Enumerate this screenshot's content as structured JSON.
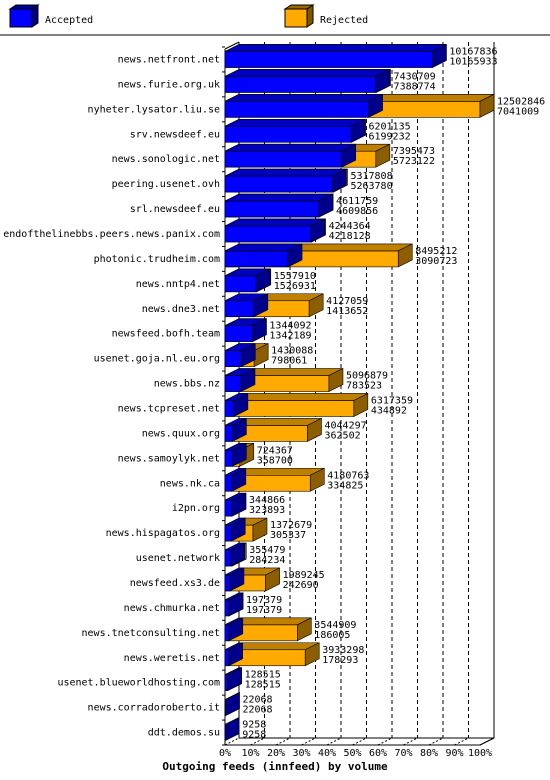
{
  "chart_data": {
    "type": "bar3d",
    "title": "Outgoing feeds (innfeed) by volume",
    "categories": [
      "news.netfront.net",
      "news.furie.org.uk",
      "nyheter.lysator.liu.se",
      "srv.newsdeef.eu",
      "news.sonologic.net",
      "peering.usenet.ovh",
      "srl.newsdeef.eu",
      "endofthelinebbs.peers.news.panix.com",
      "photonic.trudheim.com",
      "news.nntp4.net",
      "news.dne3.net",
      "newsfeed.bofh.team",
      "usenet.goja.nl.eu.org",
      "news.bbs.nz",
      "news.tcpreset.net",
      "news.quux.org",
      "news.samoylyk.net",
      "news.nk.ca",
      "i2pn.org",
      "news.hispagatos.org",
      "usenet.network",
      "newsfeed.xs3.de",
      "news.chmurka.net",
      "news.tnetconsulting.net",
      "news.weretis.net",
      "usenet.blueworldhosting.com",
      "news.corradoroberto.it",
      "ddt.demos.su"
    ],
    "series": [
      {
        "name": "Accepted",
        "color": "#0000ff",
        "values": [
          10165933,
          7388774,
          7041009,
          6199232,
          5723122,
          5263780,
          4609856,
          4218128,
          3090723,
          1526931,
          1413652,
          1342189,
          798061,
          783523,
          434892,
          362502,
          358700,
          334825,
          323893,
          305337,
          284234,
          242690,
          197379,
          186005,
          178293,
          128515,
          22068,
          9258
        ]
      },
      {
        "name": "Rejected",
        "color": "#ffaa00",
        "values": [
          10167836,
          7430709,
          12502846,
          6201135,
          7395473,
          5317808,
          4611759,
          4244364,
          8495212,
          1557910,
          4127059,
          1344092,
          1430088,
          5096879,
          6317359,
          4044297,
          724367,
          4180763,
          344866,
          1372679,
          355479,
          1989245,
          197379,
          3544909,
          3933298,
          128515,
          22068,
          9258
        ]
      }
    ],
    "xlim": [
      0,
      12502846
    ],
    "xticks": [
      {
        "value": 0,
        "label": "0%"
      },
      {
        "value": 1250284.6,
        "label": "10%"
      },
      {
        "value": 2500569.2,
        "label": "20%"
      },
      {
        "value": 3750853.8,
        "label": "30%"
      },
      {
        "value": 5001138.4,
        "label": "40%"
      },
      {
        "value": 6251423,
        "label": "50%"
      },
      {
        "value": 7501707.6,
        "label": "60%"
      },
      {
        "value": 8751992.2,
        "label": "70%"
      },
      {
        "value": 10002276.8,
        "label": "80%"
      },
      {
        "value": 11252561.4,
        "label": "90%"
      },
      {
        "value": 12502846,
        "label": "100%"
      }
    ],
    "grid": true
  }
}
